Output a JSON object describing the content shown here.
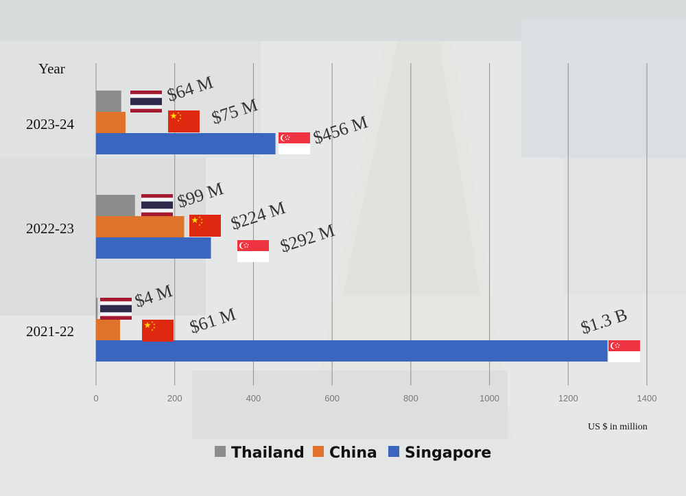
{
  "chart_data": {
    "type": "bar",
    "orientation": "horizontal",
    "categories": [
      "2023-24",
      "2022-23",
      "2021-22"
    ],
    "series": [
      {
        "name": "Thailand",
        "color": "#8c8c8c",
        "flag": "thailand-flag",
        "values": [
          64,
          99,
          4
        ],
        "labels": [
          "$64 M",
          "$99 M",
          "$4 M"
        ]
      },
      {
        "name": "China",
        "color": "#e0732c",
        "flag": "china-flag",
        "values": [
          75,
          224,
          61
        ],
        "labels": [
          "$75 M",
          "$224 M",
          "$61 M"
        ]
      },
      {
        "name": "Singapore",
        "color": "#3a66c0",
        "flag": "singapore-flag",
        "values": [
          456,
          292,
          1300
        ],
        "labels": [
          "$456 M",
          "$292 M",
          "$1.3 B"
        ]
      }
    ],
    "ylabel": "Year",
    "xlabel": "US $ in million",
    "xticks": [
      0,
      200,
      400,
      600,
      800,
      1000,
      1200,
      1400
    ],
    "xlim": [
      0,
      1400
    ],
    "grid": true,
    "legend_position": "bottom"
  }
}
